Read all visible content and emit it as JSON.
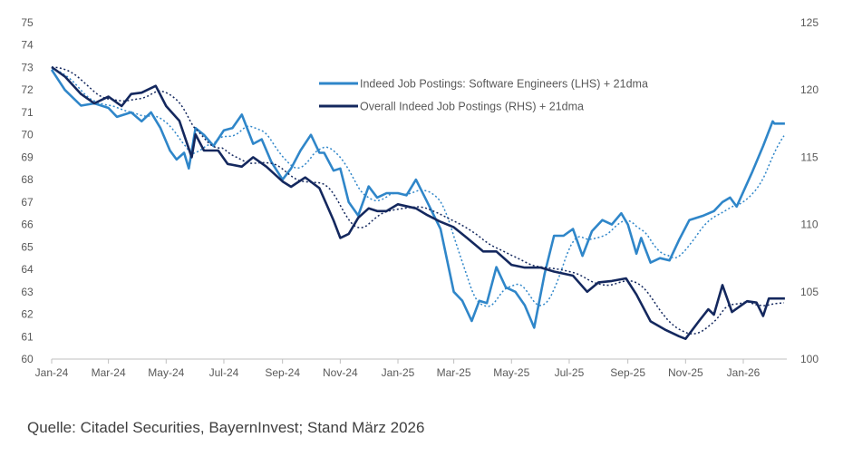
{
  "chart_data": {
    "type": "line",
    "title": "",
    "xlabel": "",
    "ylabel_left": "",
    "ylabel_right": "",
    "x_tick_labels": [
      "Jan-24",
      "Mar-24",
      "May-24",
      "Jul-24",
      "Sep-24",
      "Nov-24",
      "Jan-25",
      "Mar-25",
      "May-25",
      "Jul-25",
      "Sep-25",
      "Nov-25",
      "Jan-26"
    ],
    "y_left": {
      "range": [
        60,
        75
      ],
      "ticks": [
        "60",
        "61",
        "62",
        "63",
        "64",
        "65",
        "66",
        "67",
        "68",
        "69",
        "70",
        "71",
        "72",
        "73",
        "74",
        "75"
      ]
    },
    "y_right": {
      "range": [
        100,
        125
      ],
      "ticks": [
        "100",
        "105",
        "110",
        "115",
        "120",
        "125"
      ]
    },
    "grid": false,
    "legend_position": "top-center",
    "series": [
      {
        "name": "Indeed Job Postings: Software Engineers (LHS) + 21dma",
        "axis": "left",
        "color": "#2f86c9",
        "moving_average": "21dma",
        "points": [
          [
            "2024-01-01",
            72.9
          ],
          [
            "2024-01-15",
            72.0
          ],
          [
            "2024-02-01",
            71.3
          ],
          [
            "2024-02-15",
            71.4
          ],
          [
            "2024-03-01",
            71.2
          ],
          [
            "2024-03-10",
            70.8
          ],
          [
            "2024-03-25",
            71.0
          ],
          [
            "2024-04-05",
            70.6
          ],
          [
            "2024-04-15",
            71.0
          ],
          [
            "2024-04-25",
            70.3
          ],
          [
            "2024-05-05",
            69.3
          ],
          [
            "2024-05-12",
            68.9
          ],
          [
            "2024-05-20",
            69.2
          ],
          [
            "2024-05-25",
            68.5
          ],
          [
            "2024-06-01",
            70.3
          ],
          [
            "2024-06-10",
            70.0
          ],
          [
            "2024-06-20",
            69.5
          ],
          [
            "2024-07-01",
            70.2
          ],
          [
            "2024-07-10",
            70.3
          ],
          [
            "2024-07-20",
            70.9
          ],
          [
            "2024-08-01",
            69.6
          ],
          [
            "2024-08-10",
            69.8
          ],
          [
            "2024-08-20",
            68.8
          ],
          [
            "2024-09-01",
            68.0
          ],
          [
            "2024-09-10",
            68.5
          ],
          [
            "2024-09-20",
            69.3
          ],
          [
            "2024-10-01",
            70.0
          ],
          [
            "2024-10-10",
            69.2
          ],
          [
            "2024-10-15",
            69.2
          ],
          [
            "2024-10-25",
            68.4
          ],
          [
            "2024-11-01",
            68.5
          ],
          [
            "2024-11-10",
            67.0
          ],
          [
            "2024-11-20",
            66.4
          ],
          [
            "2024-12-01",
            67.7
          ],
          [
            "2024-12-10",
            67.2
          ],
          [
            "2024-12-20",
            67.4
          ],
          [
            "2025-01-01",
            67.4
          ],
          [
            "2025-01-10",
            67.3
          ],
          [
            "2025-01-20",
            68.0
          ],
          [
            "2025-02-01",
            67.0
          ],
          [
            "2025-02-15",
            65.8
          ],
          [
            "2025-03-01",
            63.0
          ],
          [
            "2025-03-10",
            62.6
          ],
          [
            "2025-03-20",
            61.7
          ],
          [
            "2025-03-28",
            62.6
          ],
          [
            "2025-04-05",
            62.5
          ],
          [
            "2025-04-15",
            64.1
          ],
          [
            "2025-04-25",
            63.2
          ],
          [
            "2025-05-05",
            63.0
          ],
          [
            "2025-05-15",
            62.4
          ],
          [
            "2025-05-25",
            61.4
          ],
          [
            "2025-06-05",
            63.8
          ],
          [
            "2025-06-15",
            65.5
          ],
          [
            "2025-06-25",
            65.5
          ],
          [
            "2025-07-05",
            65.8
          ],
          [
            "2025-07-15",
            64.6
          ],
          [
            "2025-07-25",
            65.7
          ],
          [
            "2025-08-05",
            66.2
          ],
          [
            "2025-08-15",
            66.0
          ],
          [
            "2025-08-25",
            66.5
          ],
          [
            "2025-09-01",
            66.0
          ],
          [
            "2025-09-10",
            64.7
          ],
          [
            "2025-09-15",
            65.4
          ],
          [
            "2025-09-25",
            64.3
          ],
          [
            "2025-10-05",
            64.5
          ],
          [
            "2025-10-15",
            64.4
          ],
          [
            "2025-10-25",
            65.3
          ],
          [
            "2025-11-05",
            66.2
          ],
          [
            "2025-11-20",
            66.4
          ],
          [
            "2025-12-01",
            66.6
          ],
          [
            "2025-12-10",
            67.0
          ],
          [
            "2025-12-18",
            67.2
          ],
          [
            "2025-12-25",
            66.8
          ],
          [
            "2026-01-10",
            68.3
          ],
          [
            "2026-01-22",
            69.5
          ],
          [
            "2026-02-01",
            70.6
          ],
          [
            "2026-02-03",
            70.5
          ],
          [
            "2026-02-14",
            70.5
          ]
        ]
      },
      {
        "name": "Overall Indeed Job Postings (RHS) + 21dma",
        "axis": "right",
        "color": "#14285e",
        "moving_average": "21dma",
        "points": [
          [
            "2024-01-01",
            121.7
          ],
          [
            "2024-01-15",
            121.0
          ],
          [
            "2024-02-01",
            119.7
          ],
          [
            "2024-02-15",
            119.0
          ],
          [
            "2024-03-01",
            119.5
          ],
          [
            "2024-03-15",
            118.8
          ],
          [
            "2024-03-25",
            119.7
          ],
          [
            "2024-04-05",
            119.8
          ],
          [
            "2024-04-20",
            120.3
          ],
          [
            "2024-05-01",
            118.8
          ],
          [
            "2024-05-15",
            117.7
          ],
          [
            "2024-05-28",
            115.0
          ],
          [
            "2024-06-01",
            116.7
          ],
          [
            "2024-06-10",
            115.5
          ],
          [
            "2024-06-25",
            115.5
          ],
          [
            "2024-07-05",
            114.5
          ],
          [
            "2024-07-20",
            114.3
          ],
          [
            "2024-08-01",
            115.0
          ],
          [
            "2024-08-15",
            114.3
          ],
          [
            "2024-09-01",
            113.2
          ],
          [
            "2024-09-10",
            112.8
          ],
          [
            "2024-09-25",
            113.5
          ],
          [
            "2024-10-10",
            112.7
          ],
          [
            "2024-10-25",
            110.3
          ],
          [
            "2024-11-01",
            109.0
          ],
          [
            "2024-11-10",
            109.3
          ],
          [
            "2024-11-20",
            110.5
          ],
          [
            "2024-12-01",
            111.2
          ],
          [
            "2024-12-10",
            111.0
          ],
          [
            "2024-12-20",
            111.0
          ],
          [
            "2025-01-01",
            111.5
          ],
          [
            "2025-01-20",
            111.2
          ],
          [
            "2025-02-01",
            110.7
          ],
          [
            "2025-02-15",
            110.2
          ],
          [
            "2025-03-01",
            109.8
          ],
          [
            "2025-03-15",
            109.0
          ],
          [
            "2025-04-01",
            108.0
          ],
          [
            "2025-04-15",
            108.0
          ],
          [
            "2025-05-01",
            107.0
          ],
          [
            "2025-05-15",
            106.8
          ],
          [
            "2025-06-01",
            106.8
          ],
          [
            "2025-06-15",
            106.5
          ],
          [
            "2025-07-05",
            106.2
          ],
          [
            "2025-07-20",
            105.0
          ],
          [
            "2025-08-01",
            105.7
          ],
          [
            "2025-08-15",
            105.8
          ],
          [
            "2025-08-30",
            106.0
          ],
          [
            "2025-09-10",
            104.8
          ],
          [
            "2025-09-25",
            102.8
          ],
          [
            "2025-10-10",
            102.2
          ],
          [
            "2025-10-25",
            101.7
          ],
          [
            "2025-11-01",
            101.5
          ],
          [
            "2025-11-15",
            102.8
          ],
          [
            "2025-11-25",
            103.7
          ],
          [
            "2025-12-01",
            103.3
          ],
          [
            "2025-12-10",
            105.5
          ],
          [
            "2025-12-20",
            103.5
          ],
          [
            "2026-01-05",
            104.3
          ],
          [
            "2026-01-15",
            104.2
          ],
          [
            "2026-01-22",
            103.2
          ],
          [
            "2026-01-28",
            104.5
          ],
          [
            "2026-02-14",
            104.5
          ]
        ]
      }
    ]
  },
  "source_note": "Quelle: Citadel Securities, BayernInvest; Stand März 2026"
}
